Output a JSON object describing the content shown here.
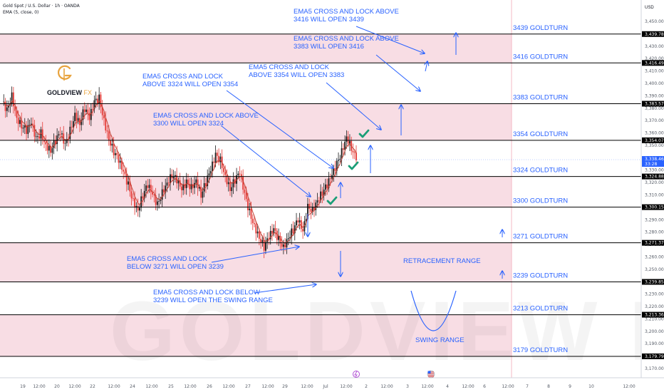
{
  "header": {
    "symbol_line": "Gold Spot / U.S. Dollar · 1h · OANDA",
    "indicator_line": "EMA (5, close, 0)"
  },
  "brand": {
    "logo_text": "GOLDVIEW",
    "logo_suffix": "FX",
    "watermark": "GOLDVIEW FX",
    "gold": "#e8a33d"
  },
  "colors": {
    "zone_fill": "#f8dde4",
    "level_line": "#000000",
    "annotation_blue": "#2962ff",
    "candle_up": "#1a1a1a",
    "candle_down": "#e53935",
    "ema": "#c0392b",
    "check": "#1b9e77",
    "price_tag": "#2962ff"
  },
  "chart_data": {
    "type": "candlestick",
    "instrument": "Gold Spot / U.S. Dollar",
    "timeframe": "1h",
    "source": "OANDA",
    "y_axis_unit": "USD",
    "ylim": [
      3165,
      3455
    ],
    "y_ticks": [
      3170,
      3180,
      3190,
      3200,
      3210,
      3220,
      3230,
      3240,
      3250,
      3260,
      3270,
      3280,
      3290,
      3300,
      3310,
      3320,
      3330,
      3340,
      3350,
      3360,
      3370,
      3380,
      3390,
      3400,
      3410,
      3420,
      3430,
      3440,
      3450
    ],
    "x_ticks": [
      "19",
      "12:00",
      "20",
      "12:00",
      "22",
      "12:00",
      "24",
      "12:00",
      "25",
      "12:00",
      "26",
      "12:00",
      "27",
      "12:00",
      "29",
      "12:00",
      "Jul",
      "12:00",
      "2",
      "12:00",
      "3",
      "12:00",
      "4",
      "12:00",
      "6",
      "12:00",
      "7",
      "8",
      "9",
      "10",
      "12:00"
    ],
    "current_price": {
      "value": "3,338.465",
      "countdown": "33:28"
    },
    "levels": [
      {
        "price": 3439.783,
        "price_label": "3,439.783",
        "name": "3439 GOLDTURN"
      },
      {
        "price": 3416.492,
        "price_label": "3,416.492",
        "name": "3416 GOLDTURN"
      },
      {
        "price": 3383.575,
        "price_label": "3,383.575",
        "name": "3383 GOLDTURN"
      },
      {
        "price": 3354.074,
        "price_label": "3,354.074",
        "name": "3354 GOLDTURN"
      },
      {
        "price": 3324.884,
        "price_label": "3,324.884",
        "name": "3324 GOLDTURN"
      },
      {
        "price": 3300.153,
        "price_label": "3,300.153",
        "name": "3300 GOLDTURN"
      },
      {
        "price": 3271.376,
        "price_label": "3,271.376",
        "name": "3271 GOLDTURN"
      },
      {
        "price": 3239.859,
        "price_label": "3,239.859",
        "name": "3239 GOLDTURN"
      },
      {
        "price": 3213.366,
        "price_label": "3,213.366",
        "name": "3213 GOLDTURN"
      },
      {
        "price": 3179.793,
        "price_label": "3,179.793",
        "name": "3179 GOLDTURN"
      }
    ],
    "zones": [
      [
        3416.492,
        3439.783
      ],
      [
        3354.074,
        3383.575
      ],
      [
        3300.153,
        3324.884
      ],
      [
        3239.859,
        3271.376
      ],
      [
        3179.793,
        3213.366
      ]
    ],
    "price_series": [
      3385,
      3378,
      3390,
      3372,
      3366,
      3362,
      3368,
      3355,
      3360,
      3350,
      3346,
      3354,
      3360,
      3350,
      3362,
      3375,
      3368,
      3380,
      3372,
      3385,
      3388,
      3370,
      3355,
      3345,
      3338,
      3328,
      3318,
      3305,
      3298,
      3310,
      3318,
      3310,
      3302,
      3312,
      3320,
      3326,
      3322,
      3314,
      3320,
      3316,
      3322,
      3310,
      3320,
      3330,
      3342,
      3338,
      3325,
      3315,
      3322,
      3328,
      3310,
      3296,
      3285,
      3276,
      3268,
      3276,
      3282,
      3274,
      3268,
      3276,
      3282,
      3290,
      3280,
      3300,
      3298,
      3306,
      3312,
      3318,
      3326,
      3335,
      3345,
      3357,
      3348,
      3338
    ],
    "annotations": [
      {
        "lines": [
          "EMA5 CROSS AND LOCK ABOVE",
          "3416 WILL OPEN 3439"
        ]
      },
      {
        "lines": [
          "EMA5 CROSS AND LOCK ABOVE",
          "3383 WILL OPEN 3416"
        ]
      },
      {
        "lines": [
          "EMA5 CROSS AND LOCK",
          "ABOVE 3354 WILL OPEN 3383"
        ]
      },
      {
        "lines": [
          "EMA5 CROSS AND LOCK",
          "ABOVE 3324 WILL OPEN 3354"
        ]
      },
      {
        "lines": [
          "EMA5 CROSS AND LOCK ABOVE",
          "3300 WILL OPEN 3324"
        ]
      },
      {
        "lines": [
          "EMA5 CROSS AND LOCK",
          "BELOW 3271 WILL OPEN 3239"
        ]
      },
      {
        "lines": [
          "EMA5 CROSS AND LOCK BELOW",
          "3239 WILL OPEN THE SWING RANGE"
        ]
      },
      {
        "lines": [
          "RETRACEMENT RANGE"
        ]
      },
      {
        "lines": [
          "SWING RANGE"
        ]
      }
    ]
  }
}
